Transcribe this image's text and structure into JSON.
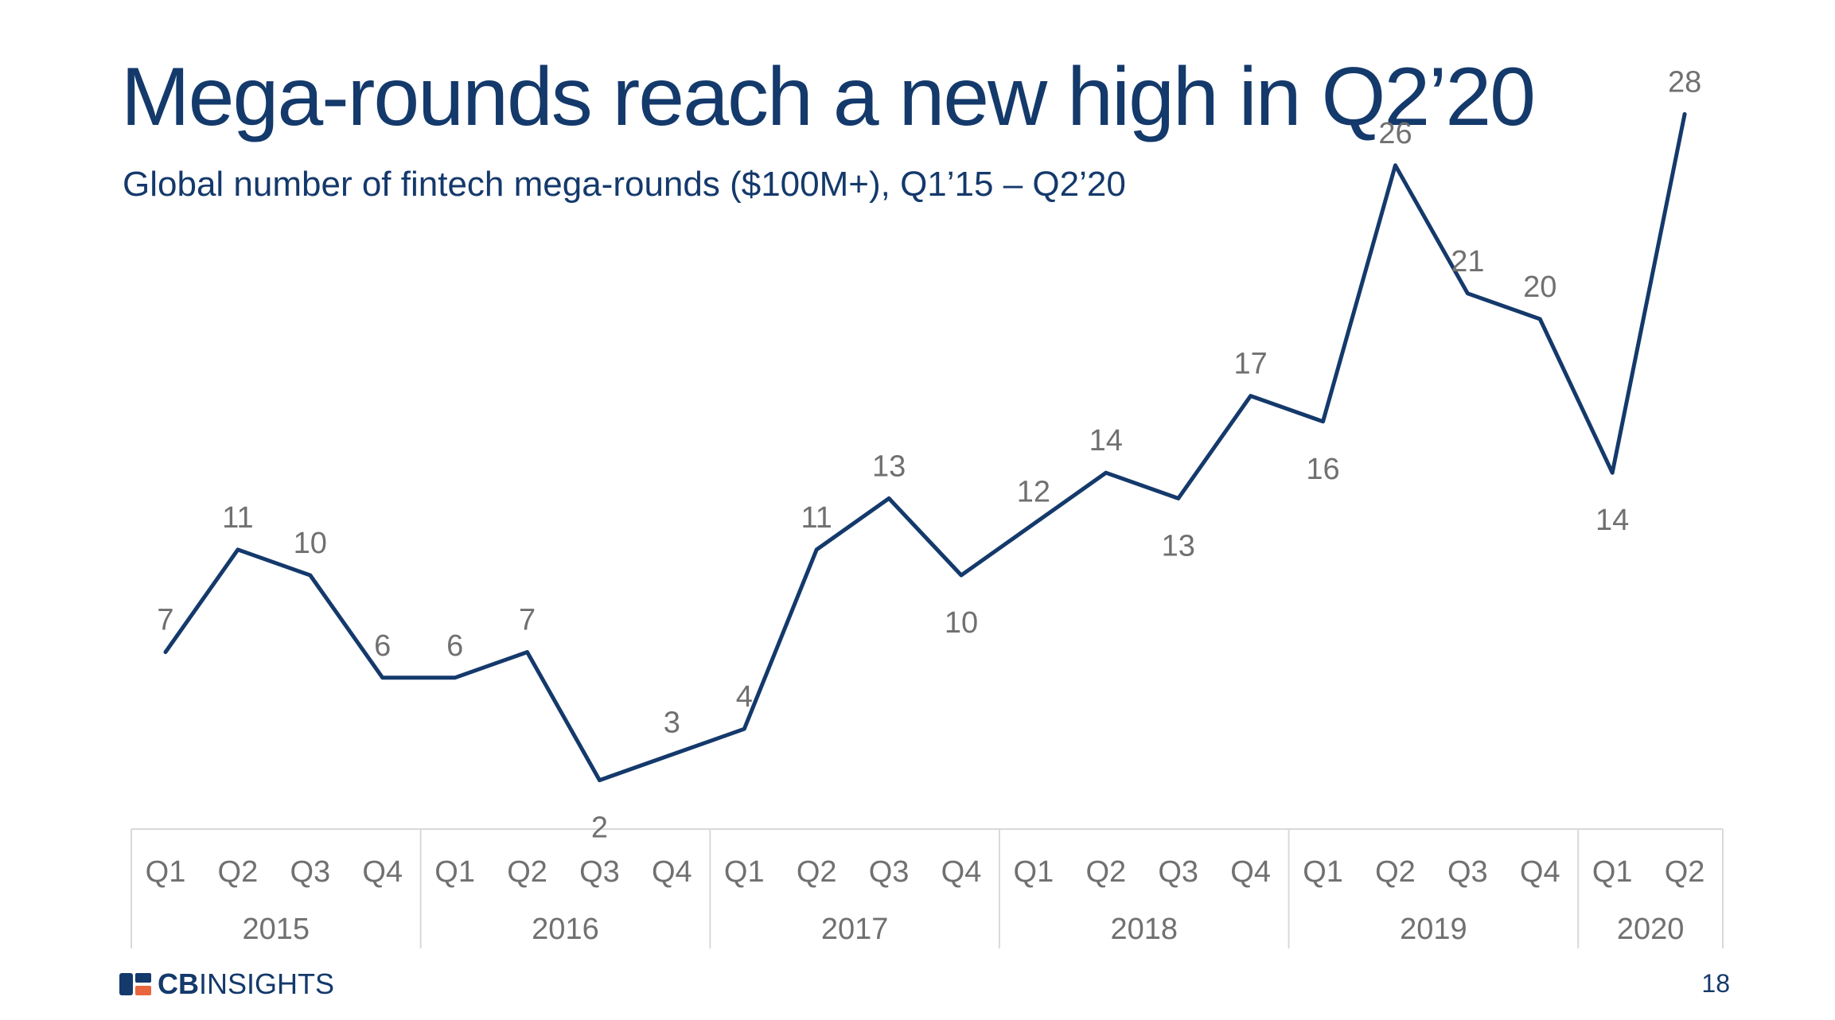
{
  "slide": {
    "title": "Mega-rounds reach a new high in Q2’20",
    "subtitle": "Global number of fintech mega-rounds ($100M+), Q1’15 – Q2’20",
    "page_number": "18",
    "logo": {
      "bold": "CB",
      "rest": "INSIGHTS",
      "icon": "cbinsights-logo-icon"
    }
  },
  "colors": {
    "title": "#14396b",
    "line": "#14396b",
    "label": "#707070",
    "axis_border": "#d9d9d9"
  },
  "chart_data": {
    "type": "line",
    "title": "",
    "xlabel": "",
    "ylabel": "",
    "categories": [
      "Q1",
      "Q2",
      "Q3",
      "Q4",
      "Q1",
      "Q2",
      "Q3",
      "Q4",
      "Q1",
      "Q2",
      "Q3",
      "Q4",
      "Q1",
      "Q2",
      "Q3",
      "Q4",
      "Q1",
      "Q2",
      "Q3",
      "Q4",
      "Q1",
      "Q2"
    ],
    "groups": [
      {
        "label": "2015",
        "count": 4
      },
      {
        "label": "2016",
        "count": 4
      },
      {
        "label": "2017",
        "count": 4
      },
      {
        "label": "2018",
        "count": 4
      },
      {
        "label": "2019",
        "count": 4
      },
      {
        "label": "2020",
        "count": 2
      }
    ],
    "series": [
      {
        "values": [
          7,
          11,
          10,
          6,
          6,
          7,
          2,
          3,
          4,
          11,
          13,
          10,
          12,
          14,
          13,
          17,
          16,
          26,
          21,
          20,
          14,
          28
        ]
      }
    ],
    "ylim": [
      0,
      28
    ],
    "grid": false,
    "legend": "none",
    "data_labels": true
  }
}
